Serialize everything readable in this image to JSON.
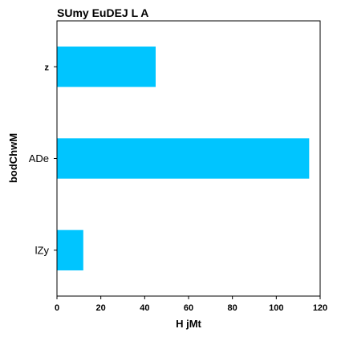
{
  "chart_data": {
    "type": "bar",
    "orientation": "horizontal",
    "title": "SUmy EuDEJ L A",
    "xlabel": "H jMt",
    "ylabel": "bodChwM",
    "categories": [
      "lZy",
      "ADe",
      "z"
    ],
    "values": [
      12,
      115,
      45
    ],
    "xlim": [
      0,
      120
    ],
    "xticks": [
      0,
      20,
      40,
      60,
      80,
      100,
      120
    ],
    "color": "#00c5ff",
    "grid": false,
    "legend": "none"
  }
}
